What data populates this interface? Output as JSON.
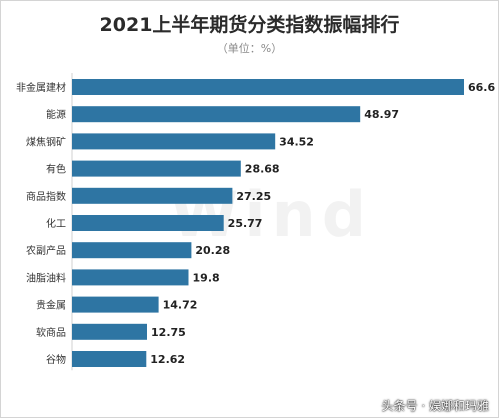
{
  "chart_data": {
    "type": "bar",
    "orientation": "horizontal",
    "title": "2021上半年期货分类指数振幅排行",
    "subtitle": "（单位：%）",
    "categories": [
      "非金属建材",
      "能源",
      "煤焦钢矿",
      "有色",
      "商品指数",
      "化工",
      "农副产品",
      "油脂油料",
      "贵金属",
      "软商品",
      "谷物"
    ],
    "value_labels": [
      "66.6",
      "48.97",
      "34.52",
      "28.68",
      "27.25",
      "25.77",
      "20.28",
      "19.8",
      "14.72",
      "12.75",
      "12.62"
    ],
    "values": [
      66.6,
      48.97,
      34.52,
      28.68,
      27.25,
      25.77,
      20.28,
      19.8,
      14.72,
      12.75,
      12.62
    ],
    "xlim": [
      0,
      66.6
    ],
    "bar_color": "#2e75a3",
    "grid": false,
    "legend": "none"
  },
  "watermark": "Wind",
  "footer": "头条号 · 娱娜和玛雅"
}
